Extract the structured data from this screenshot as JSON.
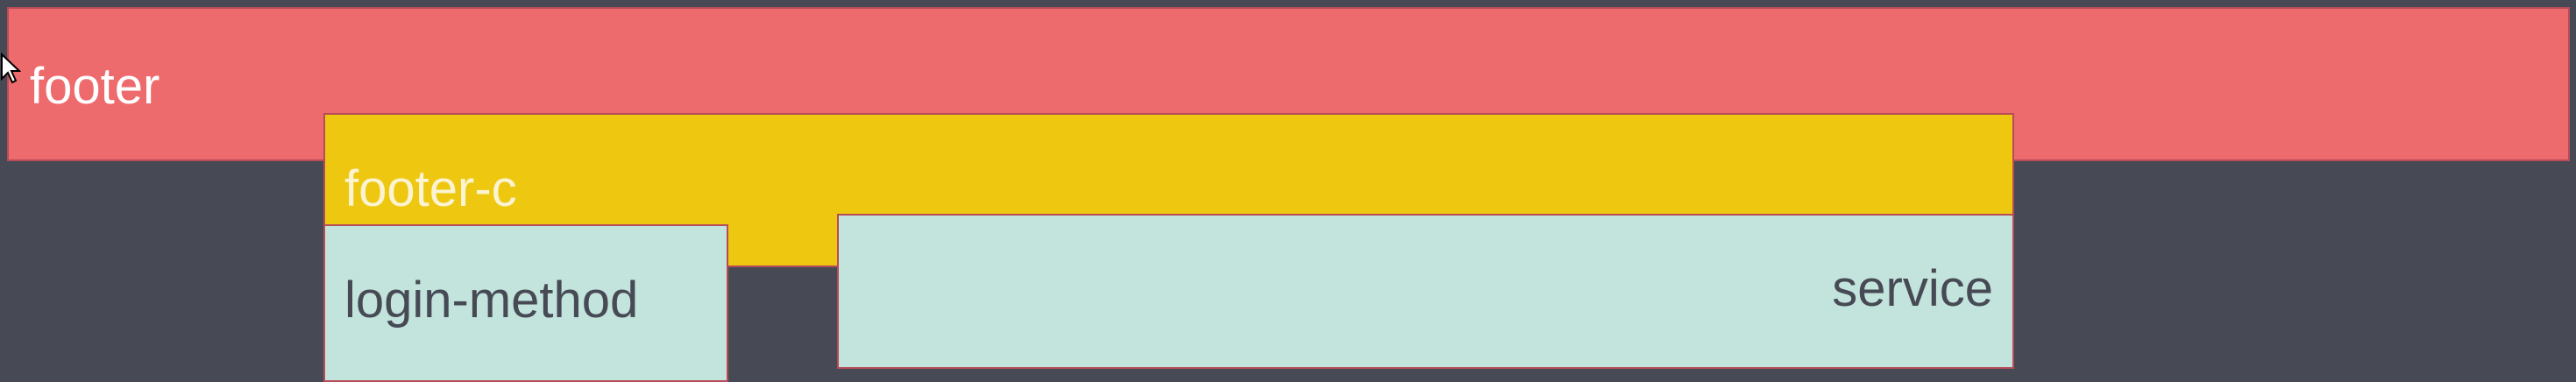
{
  "layout_regions": {
    "footer": {
      "label": "footer"
    },
    "footer_c": {
      "label": "footer-c"
    },
    "login_method": {
      "label": "login-method"
    },
    "service": {
      "label": "service"
    }
  },
  "colors": {
    "canvas": "#474a55",
    "footer": "#ee6b6d",
    "footer_c": "#eec810",
    "login_method": "#c2e4dc",
    "service": "#c2e4dc",
    "border": "#b64c58"
  },
  "cursor": {
    "icon": "mouse-pointer-icon"
  }
}
